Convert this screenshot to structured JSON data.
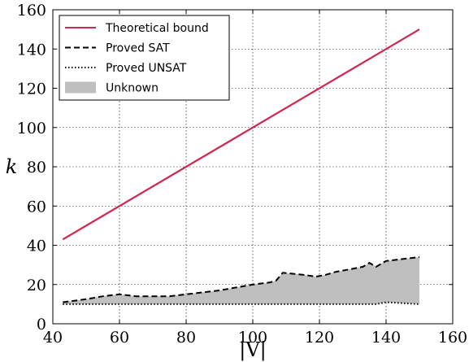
{
  "chart_data": {
    "type": "line",
    "xlabel": "|V|",
    "ylabel": "k",
    "xlim": [
      40,
      160
    ],
    "ylim": [
      0,
      160
    ],
    "xticks": [
      "40",
      "60",
      "80",
      "100",
      "120",
      "140",
      "160"
    ],
    "yticks": [
      "0",
      "20",
      "40",
      "60",
      "80",
      "100",
      "120",
      "140",
      "160"
    ],
    "grid": true,
    "legend_position": "top-left",
    "series": [
      {
        "name": "Theoretical bound",
        "style": "solid",
        "color": "#d0264f",
        "x": [
          43,
          150
        ],
        "y": [
          43,
          150
        ]
      },
      {
        "name": "Proved SAT",
        "style": "dashed",
        "color": "#000000",
        "x": [
          43,
          50,
          55,
          60,
          65,
          70,
          75,
          80,
          85,
          90,
          95,
          100,
          105,
          107,
          109,
          112,
          115,
          119,
          122,
          125,
          130,
          133,
          135,
          137,
          140,
          145,
          150
        ],
        "y": [
          11,
          12.5,
          14,
          15,
          14,
          14,
          14,
          15,
          16,
          17,
          18.5,
          20,
          21,
          22,
          26,
          25.5,
          25,
          24,
          25,
          26.5,
          28,
          29,
          31,
          29,
          32,
          33,
          34
        ]
      },
      {
        "name": "Proved UNSAT",
        "style": "dotted",
        "color": "#000000",
        "x": [
          43,
          60,
          80,
          100,
          120,
          137,
          140,
          145,
          150
        ],
        "y": [
          10,
          10,
          10,
          10,
          10,
          10,
          11,
          10.5,
          10
        ]
      },
      {
        "name": "Unknown",
        "style": "fill",
        "color": "#bfbfbf"
      }
    ]
  }
}
